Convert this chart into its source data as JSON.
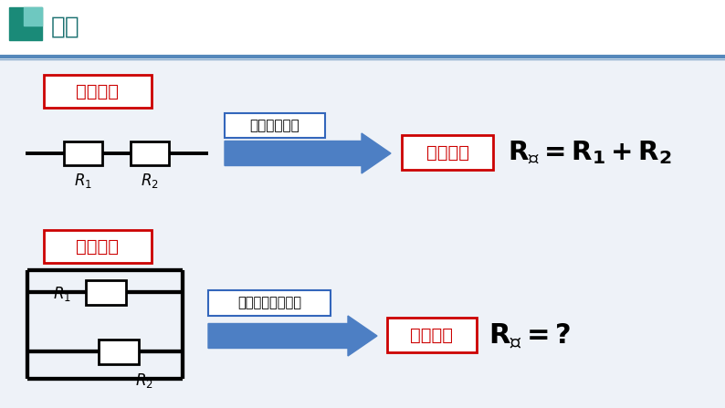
{
  "bg_color": "#eef2f8",
  "page_bg": "#f2f6fa",
  "header_bg": "#ffffff",
  "title_text": "小结",
  "title_color": "#1a7070",
  "icon_color_dark": "#1a8a78",
  "icon_color_light": "#6ec8c0",
  "header_line_color1": "#5588bb",
  "header_line_color2": "#88aacc",
  "series_label": "串联电阻",
  "parallel_label": "并联电阻",
  "arrow_text1": "电阔长度变长",
  "arrow_text2": "电阔横截面积变大",
  "result_text1": "电阔变大",
  "result_text2": "电阔变小",
  "red_color": "#cc0000",
  "blue_box_edge": "#3366bb",
  "arrow_color": "#4d7fc4",
  "lw": 2.3
}
